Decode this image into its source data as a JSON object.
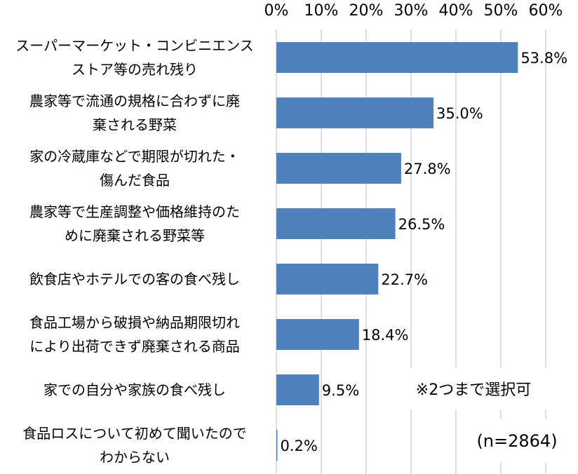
{
  "chart_data": {
    "type": "bar",
    "orientation": "horizontal",
    "categories": [
      [
        "スーパーマーケット・コンビニエンス",
        "ストア等の売れ残り"
      ],
      [
        "農家等で流通の規格に合わずに廃",
        "棄される野菜"
      ],
      [
        "家の冷蔵庫などで期限が切れた・",
        "傷んだ食品"
      ],
      [
        "農家等で生産調整や価格維持のた",
        "めに廃棄される野菜等"
      ],
      [
        "飲食店やホテルでの客の食べ残し"
      ],
      [
        "食品工場から破損や納品期限切れ",
        "により出荷できず廃棄される商品"
      ],
      [
        "家での自分や家族の食べ残し"
      ],
      [
        "食品ロスについて初めて聞いたので",
        "わからない"
      ]
    ],
    "values": [
      53.8,
      35.0,
      27.8,
      26.5,
      22.7,
      18.4,
      9.5,
      0.2
    ],
    "data_labels": [
      "53.8%",
      "35.0%",
      "27.8%",
      "26.5%",
      "22.7%",
      "18.4%",
      "9.5%",
      "0.2%"
    ],
    "x_ticks": [
      "0%",
      "10%",
      "20%",
      "30%",
      "40%",
      "50%",
      "60%"
    ],
    "xlim": [
      0,
      60
    ],
    "grid": true,
    "bar_color": "#4f81bd",
    "grid_color": "#bfbfbf"
  },
  "annotations": {
    "note": "※2つまで選択可",
    "sample": "(n=2864)"
  }
}
